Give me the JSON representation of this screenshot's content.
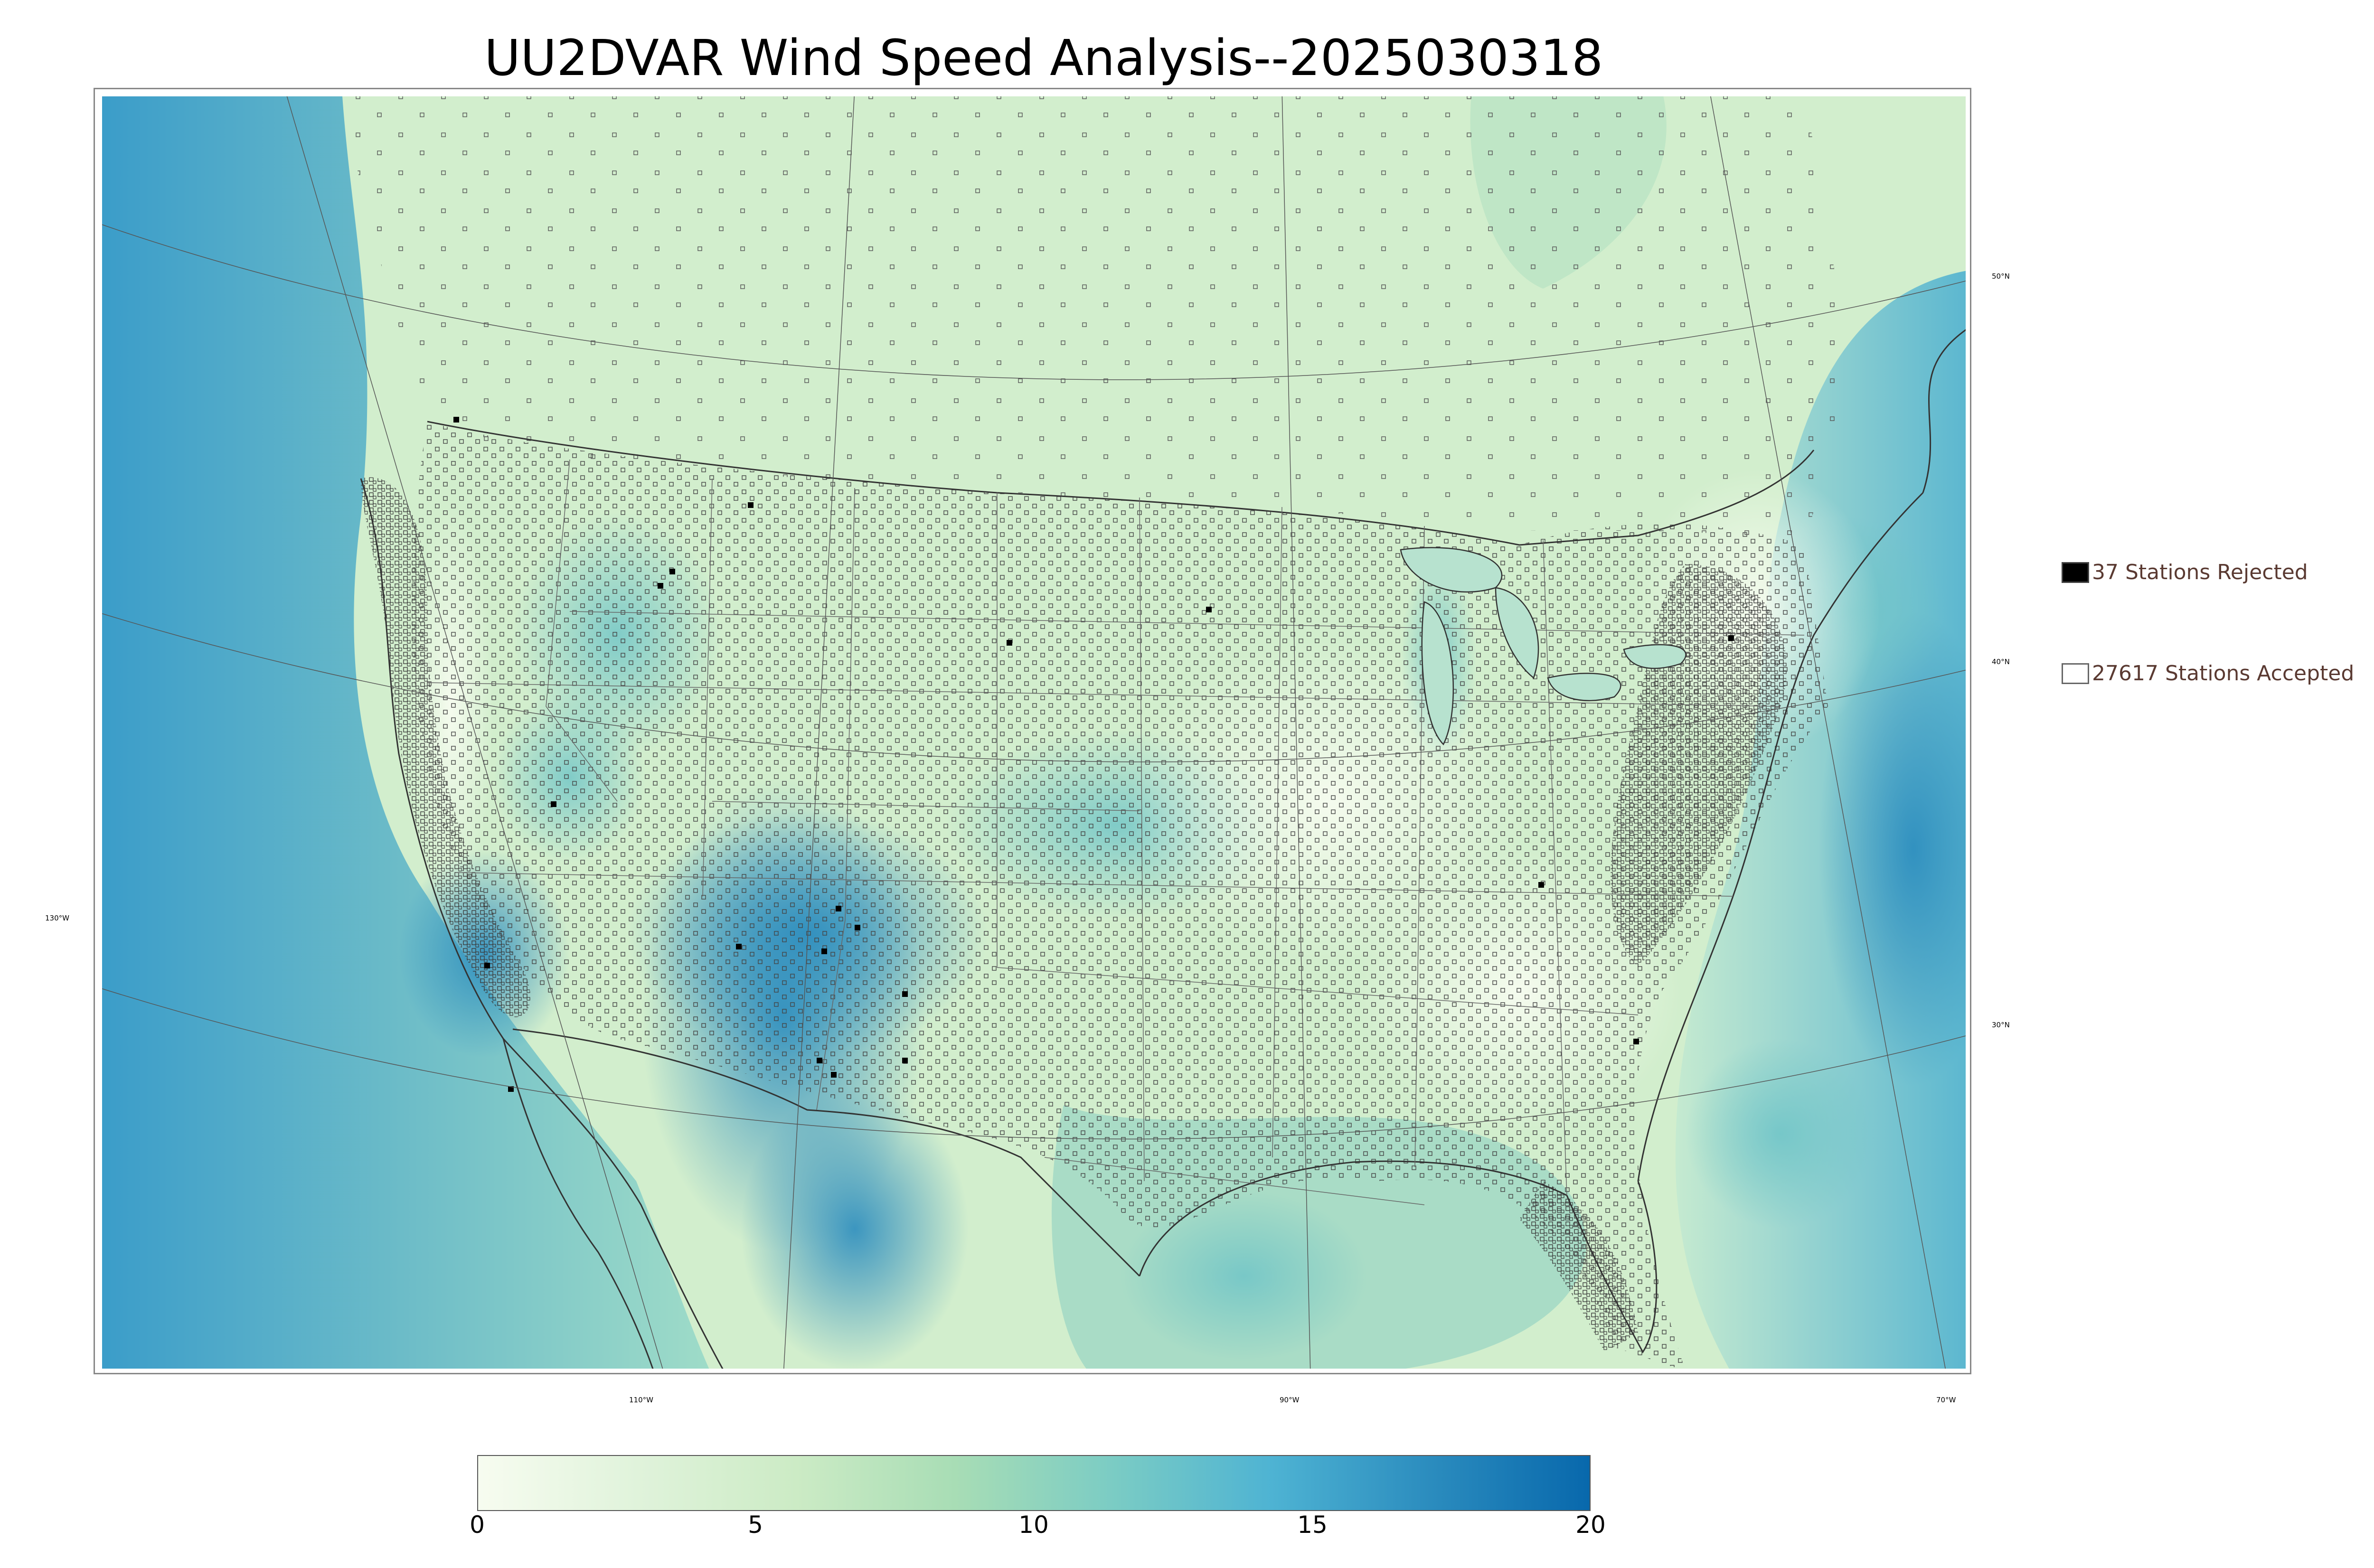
{
  "title": "UU2DVAR Wind Speed Analysis--2025030318",
  "map": {
    "lat_labels": [
      "50°N",
      "40°N",
      "30°N"
    ],
    "lon_labels": [
      "130°W",
      "110°W",
      "90°W",
      "70°W"
    ]
  },
  "legend": {
    "rejected": {
      "label": "37 Stations Rejected",
      "color": "#000000"
    },
    "accepted": {
      "label": "27617 Stations Accepted",
      "color": "#ffffff"
    }
  },
  "colorbar": {
    "ticks": [
      "0",
      "5",
      "10",
      "15",
      "20"
    ],
    "colors": [
      "#f7fcf0",
      "#e0f3db",
      "#ccebc5",
      "#a8ddb5",
      "#7bccc4",
      "#4eb3d3",
      "#2b8cbe",
      "#0868ac"
    ]
  },
  "colors": {
    "land_light": "#e6f5df",
    "ocean": "#6fc6d4",
    "high_wind": "#2b8cbe",
    "border": "#333333"
  }
}
